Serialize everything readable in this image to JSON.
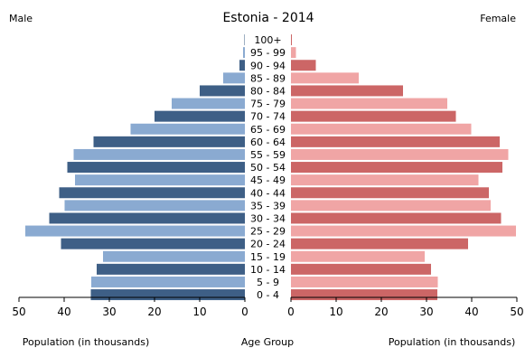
{
  "chart_data": {
    "type": "bar",
    "title": "Estonia - 2014",
    "left_label": "Male",
    "right_label": "Female",
    "xlabel_left": "Population (in thousands)",
    "xlabel_center": "Age Group",
    "xlabel_right": "Population (in thousands)",
    "xlim": [
      0,
      50
    ],
    "x_ticks": [
      50,
      40,
      30,
      20,
      10,
      0
    ],
    "categories": [
      "100+",
      "95 - 99",
      "90 - 94",
      "85 - 89",
      "80 - 84",
      "75 - 79",
      "70 - 74",
      "65 - 69",
      "60 - 64",
      "55 - 59",
      "50 - 54",
      "45 - 49",
      "40 - 44",
      "35 - 39",
      "30 - 34",
      "25 - 29",
      "20 - 24",
      "15 - 19",
      "10 - 14",
      "5 - 9",
      "0 - 4"
    ],
    "series": [
      {
        "name": "Male",
        "values": [
          0.1,
          0.4,
          1.2,
          4.8,
          10.0,
          16.2,
          20.0,
          25.3,
          33.5,
          37.9,
          39.3,
          37.6,
          41.1,
          39.9,
          43.3,
          48.6,
          40.7,
          31.4,
          32.8,
          34.0,
          34.1
        ]
      },
      {
        "name": "Female",
        "values": [
          0.2,
          1.1,
          5.5,
          15.0,
          24.8,
          34.6,
          36.5,
          39.9,
          46.2,
          48.1,
          46.8,
          41.5,
          43.8,
          44.2,
          46.5,
          49.8,
          39.2,
          29.6,
          31.0,
          32.5,
          32.4
        ]
      }
    ],
    "colors": {
      "male_dark": "#3e5f86",
      "male_light": "#8aaad1",
      "female_dark": "#cc6666",
      "female_light": "#f0a5a5"
    }
  }
}
